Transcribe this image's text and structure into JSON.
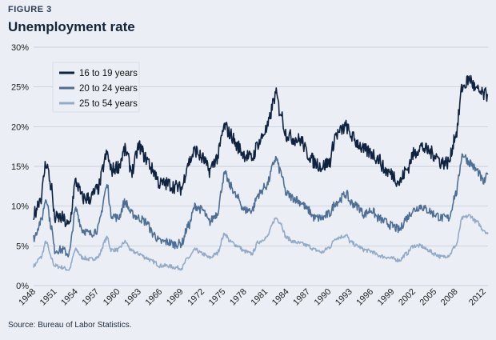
{
  "figure_label": "FIGURE 3",
  "title": "Unemployment rate",
  "source": "Source: Bureau of Labor Statistics.",
  "colors": {
    "background": "#ebeff5",
    "grid": "#b9c4d2",
    "series_16_19": "#0f2340",
    "series_20_24": "#4e6f95",
    "series_25_54": "#93abc6"
  },
  "chart_data": {
    "type": "line",
    "title": "Unemployment rate",
    "xlabel": "",
    "ylabel": "",
    "xlim": [
      1948,
      2012.6
    ],
    "ylim": [
      0,
      30
    ],
    "y_ticks": [
      0,
      5,
      10,
      15,
      20,
      25,
      30
    ],
    "y_tick_labels": [
      "0%",
      "5%",
      "10%",
      "15%",
      "20%",
      "25%",
      "30%"
    ],
    "x_ticks": [
      1948,
      1951,
      1954,
      1957,
      1960,
      1963,
      1966,
      1969,
      1972,
      1975,
      1978,
      1981,
      1984,
      1987,
      1990,
      1993,
      1996,
      1999,
      2002,
      2005,
      2008,
      2012
    ],
    "x_tick_labels": [
      "1948",
      "1951",
      "1954",
      "1957",
      "1960",
      "1963",
      "1966",
      "1969",
      "1972",
      "1975",
      "1978",
      "1981",
      "1984",
      "1987",
      "1990",
      "1993",
      "1996",
      "1999",
      "2002",
      "2005",
      "2008",
      "2012"
    ],
    "grid": true,
    "legend_position": "top-left",
    "series": [
      {
        "name": "16 to 19 years",
        "color": "#0f2340",
        "x": [
          1948,
          1949,
          1949.8,
          1950.5,
          1951,
          1952,
          1953,
          1954,
          1955,
          1956,
          1957,
          1958.5,
          1959,
          1960,
          1961,
          1962,
          1963,
          1964,
          1965,
          1966,
          1967,
          1968,
          1969,
          1970,
          1971,
          1972,
          1973,
          1974,
          1975.2,
          1976,
          1977,
          1978,
          1979,
          1980,
          1981,
          1982.5,
          1983,
          1984,
          1985,
          1986,
          1987,
          1988,
          1989,
          1990,
          1991,
          1992.5,
          1993,
          1994,
          1995,
          1996,
          1997,
          1998,
          1999,
          2000,
          2001,
          2002,
          2003,
          2004,
          2005,
          2006,
          2007,
          2008,
          2009,
          2010,
          2011,
          2012,
          2012.6
        ],
        "values": [
          9.0,
          11.0,
          15.5,
          12.5,
          8.5,
          8.5,
          7.5,
          13.0,
          11.0,
          11.0,
          12.0,
          16.5,
          14.5,
          15.0,
          17.0,
          14.5,
          17.5,
          16.0,
          14.5,
          12.8,
          12.8,
          12.5,
          12.2,
          15.5,
          17.0,
          16.0,
          14.5,
          16.0,
          20.0,
          19.0,
          17.5,
          16.5,
          16.0,
          18.0,
          19.5,
          24.0,
          22.0,
          19.0,
          18.5,
          18.3,
          16.5,
          15.5,
          15.0,
          15.5,
          19.0,
          20.0,
          19.0,
          18.0,
          17.0,
          16.7,
          16.0,
          14.5,
          14.0,
          13.0,
          14.5,
          16.5,
          17.5,
          17.0,
          16.5,
          15.5,
          15.5,
          19.0,
          25.0,
          26.0,
          24.5,
          24.0,
          24.0
        ]
      },
      {
        "name": "20 to 24 years",
        "color": "#4e6f95",
        "x": [
          1948,
          1949,
          1949.8,
          1950.5,
          1951,
          1952,
          1953,
          1954,
          1955,
          1956,
          1957,
          1958.5,
          1959,
          1960,
          1961,
          1962,
          1963,
          1964,
          1965,
          1966,
          1967,
          1968,
          1969,
          1970,
          1971,
          1972,
          1973,
          1974,
          1975.2,
          1976,
          1977,
          1978,
          1979,
          1980,
          1981,
          1982.5,
          1983,
          1984,
          1985,
          1986,
          1987,
          1988,
          1989,
          1990,
          1991,
          1992.5,
          1993,
          1994,
          1995,
          1996,
          1997,
          1998,
          1999,
          2000,
          2001,
          2002,
          2003,
          2004,
          2005,
          2006,
          2007,
          2008,
          2009,
          2010,
          2011,
          2012,
          2012.6
        ],
        "values": [
          6.0,
          8.0,
          11.0,
          7.5,
          4.5,
          4.5,
          4.0,
          9.5,
          7.0,
          6.5,
          7.0,
          12.5,
          9.0,
          8.5,
          10.5,
          9.0,
          8.5,
          8.0,
          6.5,
          5.5,
          5.5,
          5.2,
          5.3,
          7.5,
          10.0,
          9.5,
          8.0,
          9.0,
          14.0,
          12.5,
          11.0,
          9.5,
          9.5,
          11.5,
          12.5,
          16.0,
          14.5,
          11.5,
          11.0,
          10.5,
          9.5,
          8.5,
          8.5,
          9.0,
          10.5,
          11.5,
          10.5,
          10.0,
          9.0,
          9.5,
          8.5,
          8.0,
          7.5,
          7.0,
          8.5,
          9.5,
          10.0,
          9.5,
          9.0,
          8.5,
          8.5,
          11.5,
          16.5,
          15.5,
          14.5,
          13.0,
          14.0
        ]
      },
      {
        "name": "25 to 54 years",
        "color": "#93abc6",
        "x": [
          1948,
          1949,
          1949.8,
          1950.5,
          1951,
          1952,
          1953,
          1954,
          1955,
          1956,
          1957,
          1958.5,
          1959,
          1960,
          1961,
          1962,
          1963,
          1964,
          1965,
          1966,
          1967,
          1968,
          1969,
          1970,
          1971,
          1972,
          1973,
          1974,
          1975.2,
          1976,
          1977,
          1978,
          1979,
          1980,
          1981,
          1982.5,
          1983,
          1984,
          1985,
          1986,
          1987,
          1988,
          1989,
          1990,
          1991,
          1992.5,
          1993,
          1994,
          1995,
          1996,
          1997,
          1998,
          1999,
          2000,
          2001,
          2002,
          2003,
          2004,
          2005,
          2006,
          2007,
          2008,
          2009,
          2010,
          2011,
          2012,
          2012.6
        ],
        "values": [
          2.5,
          3.5,
          5.5,
          3.5,
          2.5,
          2.3,
          2.0,
          4.5,
          3.5,
          3.3,
          3.5,
          6.0,
          4.5,
          4.5,
          5.5,
          4.3,
          4.0,
          3.5,
          3.0,
          2.5,
          2.5,
          2.3,
          2.2,
          3.5,
          4.5,
          4.0,
          3.5,
          4.0,
          6.5,
          5.5,
          5.0,
          4.3,
          4.0,
          5.5,
          6.0,
          8.5,
          8.0,
          6.0,
          5.5,
          5.3,
          5.0,
          4.5,
          4.2,
          4.8,
          6.0,
          6.3,
          5.5,
          5.0,
          4.5,
          4.3,
          3.8,
          3.6,
          3.4,
          3.2,
          4.0,
          5.0,
          5.0,
          4.5,
          4.0,
          3.6,
          3.8,
          5.0,
          8.5,
          8.8,
          8.0,
          7.0,
          6.5
        ]
      }
    ]
  }
}
